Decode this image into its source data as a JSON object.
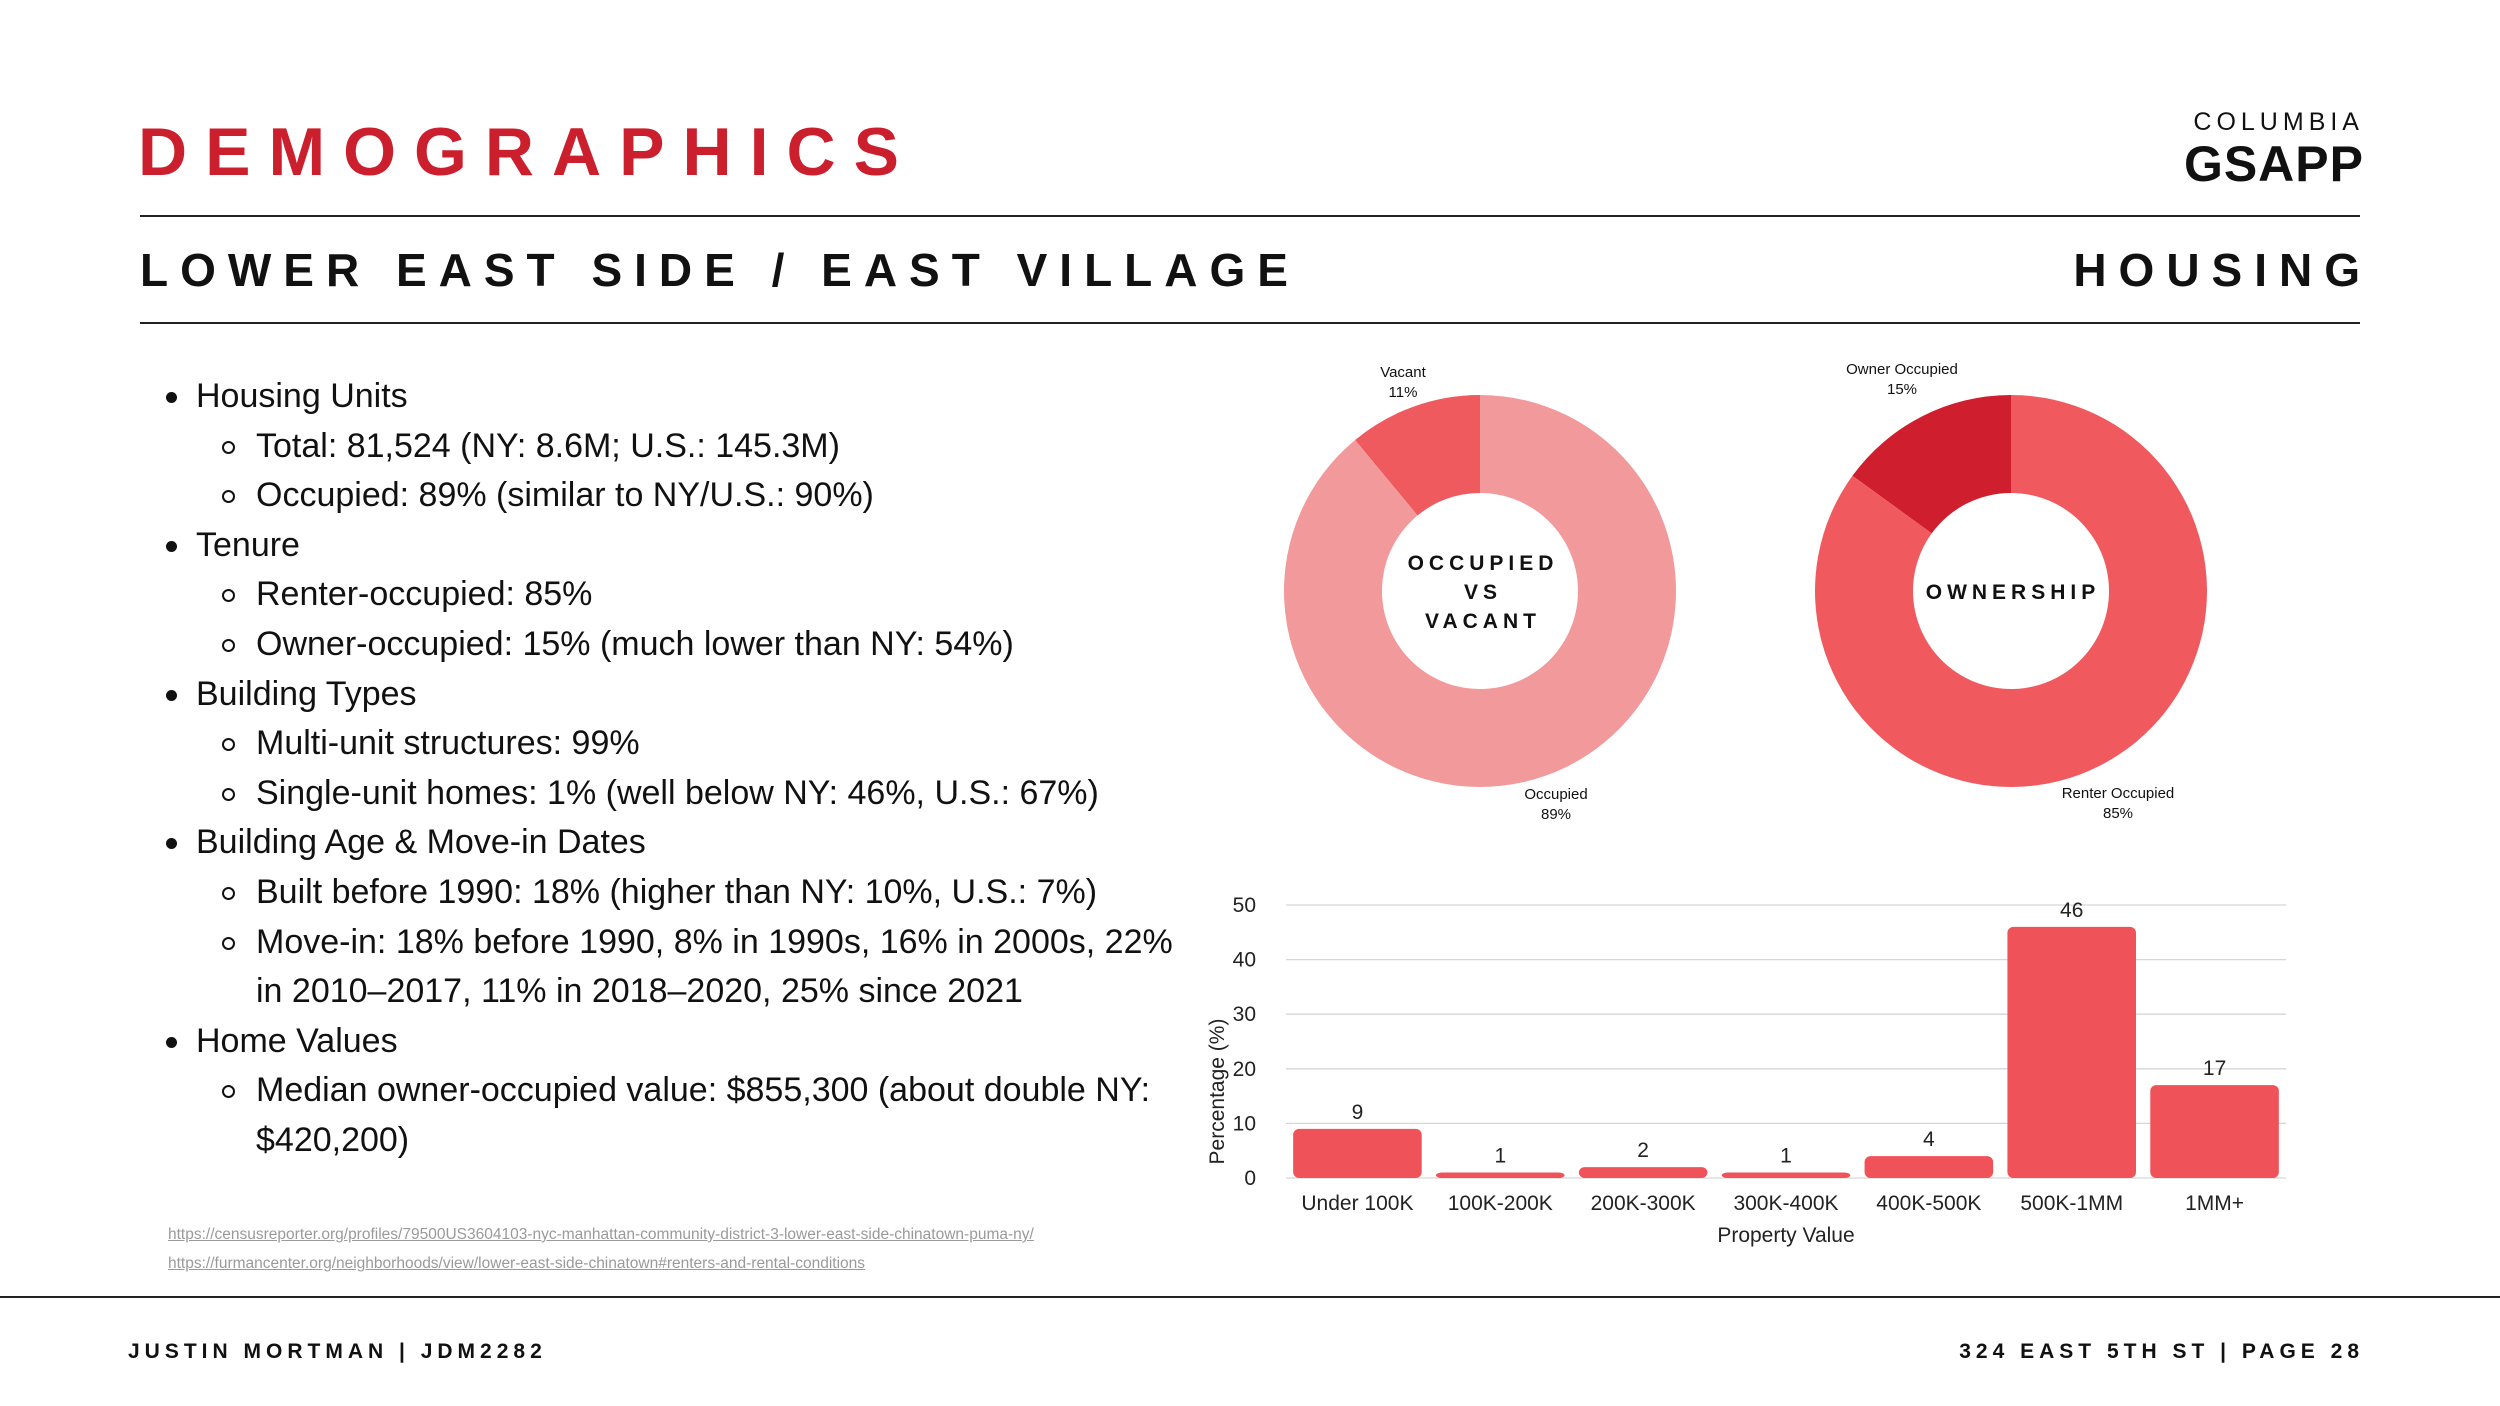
{
  "header": {
    "title": "DEMOGRAPHICS",
    "logo_top": "COLUMBIA",
    "logo_main": "GSAPP",
    "subtitle_left": "LOWER EAST SIDE / EAST VILLAGE",
    "subtitle_right": "HOUSING"
  },
  "bullets": [
    {
      "level": 1,
      "text": "Housing Units"
    },
    {
      "level": 2,
      "text": "Total: 81,524 (NY: 8.6M; U.S.: 145.3M)"
    },
    {
      "level": 2,
      "text": "Occupied: 89% (similar to NY/U.S.: 90%)"
    },
    {
      "level": 1,
      "text": "Tenure"
    },
    {
      "level": 2,
      "text": "Renter-occupied: 85%"
    },
    {
      "level": 2,
      "text": "Owner-occupied: 15% (much lower than NY: 54%)"
    },
    {
      "level": 1,
      "text": "Building Types"
    },
    {
      "level": 2,
      "text": "Multi-unit structures: 99%"
    },
    {
      "level": 2,
      "text": "Single-unit homes: 1% (well below NY: 46%, U.S.: 67%)"
    },
    {
      "level": 1,
      "text": "Building Age & Move-in Dates"
    },
    {
      "level": 2,
      "text": "Built before 1990: 18% (higher than NY: 10%, U.S.: 7%)"
    },
    {
      "level": 2,
      "text": "Move-in: 18% before 1990, 8% in 1990s, 16% in 2000s, 22% in 2010–2017, 11% in 2018–2020, 25% since 2021"
    },
    {
      "level": 1,
      "text": "Home Values"
    },
    {
      "level": 2,
      "text": "Median owner-occupied value: $855,300 (about double NY: $420,200)"
    }
  ],
  "sources": [
    "https://censusreporter.org/profiles/79500US3604103-nyc-manhattan-community-district-3-lower-east-side-chinatown-puma-ny/",
    "https://furmancenter.org/neighborhoods/view/lower-east-side-chinatown#renters-and-rental-conditions"
  ],
  "footer": {
    "left": "JUSTIN MORTMAN | JDM2282",
    "right": "324 EAST 5TH ST | PAGE 28"
  },
  "chart_data": [
    {
      "type": "pie",
      "title": "OCCUPIED VS VACANT",
      "center_lines": [
        "OCCUPIED",
        "VS",
        "VACANT"
      ],
      "slices": [
        {
          "label": "Vacant",
          "value": 11,
          "pct_label": "11%",
          "color": "#ee5a5e"
        },
        {
          "label": "Occupied",
          "value": 89,
          "pct_label": "89%",
          "color": "#f29a9b"
        }
      ]
    },
    {
      "type": "pie",
      "title": "OWNERSHIP",
      "center_lines": [
        "OWNERSHIP"
      ],
      "slices": [
        {
          "label": "Owner Occupied",
          "value": 15,
          "pct_label": "15%",
          "color": "#cf1f2e"
        },
        {
          "label": "Renter Occupied",
          "value": 85,
          "pct_label": "85%",
          "color": "#f05a5f"
        }
      ]
    },
    {
      "type": "bar",
      "categories": [
        "Under 100K",
        "100K-200K",
        "200K-300K",
        "300K-400K",
        "400K-500K",
        "500K-1MM",
        "1MM+"
      ],
      "values": [
        9,
        1,
        2,
        1,
        4,
        46,
        17
      ],
      "xlabel": "Property Value",
      "ylabel": "Percentage (%)",
      "ylim": [
        0,
        50
      ],
      "yticks": [
        0,
        10,
        20,
        30,
        40,
        50
      ],
      "bar_color": "#f0525a",
      "grid": true
    }
  ]
}
